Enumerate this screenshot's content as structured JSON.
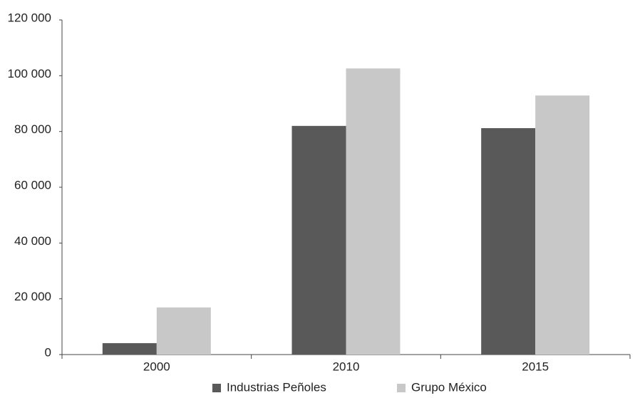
{
  "chart_data": {
    "type": "bar",
    "categories": [
      "2000",
      "2010",
      "2015"
    ],
    "series": [
      {
        "name": "Industrias Peñoles",
        "color": "#595959",
        "values": [
          4100,
          82000,
          81200
        ]
      },
      {
        "name": "Grupo México",
        "color": "#c8c8c8",
        "values": [
          16900,
          102600,
          92900
        ]
      }
    ],
    "ylim": [
      0,
      120000
    ],
    "yticks": [
      {
        "value": 0,
        "label": "0"
      },
      {
        "value": 20000,
        "label": "20 000"
      },
      {
        "value": 40000,
        "label": "40 000"
      },
      {
        "value": 60000,
        "label": "60 000"
      },
      {
        "value": 80000,
        "label": "80 000"
      },
      {
        "value": 100000,
        "label": "100 000"
      },
      {
        "value": 120000,
        "label": "120 000"
      }
    ],
    "grid": false,
    "legend": "bottom"
  }
}
